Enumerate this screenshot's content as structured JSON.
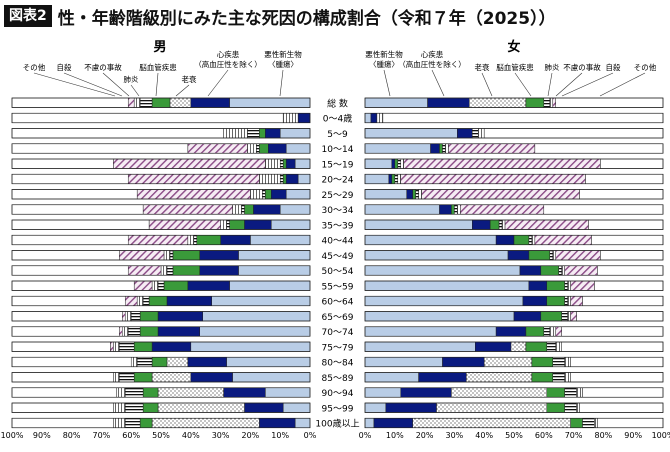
{
  "header": {
    "tag": "図表2",
    "title": "性・年齢階級別にみた主な死因の構成割合（令和７年（2025））"
  },
  "chart_data": {
    "type": "bar",
    "orientation": "horizontal-stacked",
    "categories": [
      "総 数",
      "0～4歳",
      "5～9",
      "10～14",
      "15～19",
      "20～24",
      "25～29",
      "30～34",
      "35～39",
      "40～44",
      "45～49",
      "50～54",
      "55～59",
      "60～64",
      "65～69",
      "70～74",
      "75～79",
      "80～84",
      "85～89",
      "90～94",
      "95～99",
      "100歳以上"
    ],
    "axis_ticks": [
      "100%",
      "90%",
      "80%",
      "70%",
      "60%",
      "50%",
      "40%",
      "30%",
      "20%",
      "10%",
      "0%"
    ],
    "xlim": [
      0,
      100
    ],
    "causes": [
      {
        "key": "cancer",
        "label": "悪性新生物",
        "label2": "〈腫瘍〉",
        "fill": "#b9cde6"
      },
      {
        "key": "heart",
        "label": "心疾患",
        "label2": "（高血圧性を除く）",
        "fill": "#0a1a80"
      },
      {
        "key": "senility",
        "label": "老衰",
        "label2": "",
        "fill": "dots"
      },
      {
        "key": "stroke",
        "label": "脳血管疾患",
        "label2": "",
        "fill": "#3a9a3a"
      },
      {
        "key": "pneumonia",
        "label": "肺炎",
        "label2": "",
        "fill": "hstripes"
      },
      {
        "key": "accident",
        "label": "不慮の事故",
        "label2": "",
        "fill": "vlines"
      },
      {
        "key": "suicide",
        "label": "自殺",
        "label2": "",
        "fill": "diag"
      },
      {
        "key": "other",
        "label": "その他",
        "label2": "",
        "fill": "#ffffff"
      }
    ],
    "panels": [
      {
        "sex": "男",
        "direction": "right-to-left",
        "series": [
          {
            "name": "悪性新生物",
            "values": [
              27,
              0,
              10,
              8,
              5,
              4,
              8,
              10,
              13,
              20,
              24,
              24,
              27,
              33,
              36,
              37,
              40,
              28,
              26,
              15,
              9,
              5
            ]
          },
          {
            "name": "心疾患",
            "values": [
              13,
              4,
              5,
              6,
              3,
              4,
              5,
              9,
              9,
              10,
              13,
              13,
              14,
              15,
              15,
              14,
              13,
              13,
              14,
              14,
              13,
              12
            ]
          },
          {
            "name": "老衰",
            "values": [
              7,
              0,
              0,
              0,
              0,
              0,
              0,
              0,
              0,
              0,
              0,
              0,
              0,
              0,
              0,
              0,
              0,
              7,
              13,
              22,
              29,
              36
            ]
          },
          {
            "name": "脳血管疾患",
            "values": [
              6,
              0,
              2,
              3,
              1,
              1,
              2,
              3,
              5,
              8,
              9,
              9,
              8,
              6,
              6,
              6,
              6,
              5,
              6,
              5,
              5,
              4
            ]
          },
          {
            "name": "肺炎",
            "values": [
              4,
              0,
              4,
              1,
              1,
              1,
              1,
              1,
              1,
              1,
              1,
              2,
              2,
              2,
              3,
              4,
              5,
              5,
              5,
              6,
              6,
              5
            ]
          },
          {
            "name": "不慮の事故",
            "values": [
              2,
              5,
              8,
              3,
              5,
              7,
              4,
              3,
              2,
              2,
              2,
              2,
              2,
              2,
              2,
              2,
              2,
              2,
              2,
              3,
              4,
              4
            ]
          },
          {
            "name": "自殺",
            "values": [
              2,
              0,
              0,
              20,
              51,
              44,
              38,
              30,
              24,
              20,
              15,
              11,
              6,
              4,
              1,
              1,
              1,
              0,
              0,
              0,
              0,
              0
            ]
          },
          {
            "name": "その他",
            "values": [
              39,
              91,
              71,
              59,
              34,
              39,
              42,
              44,
              46,
              39,
              36,
              39,
              41,
              38,
              37,
              36,
              33,
              40,
              34,
              35,
              34,
              34
            ]
          }
        ]
      },
      {
        "sex": "女",
        "direction": "left-to-right",
        "series": [
          {
            "name": "悪性新生物",
            "values": [
              21,
              2,
              31,
              22,
              9,
              8,
              14,
              25,
              36,
              44,
              48,
              52,
              55,
              53,
              50,
              44,
              37,
              26,
              18,
              12,
              7,
              3
            ]
          },
          {
            "name": "心疾患",
            "values": [
              14,
              2,
              5,
              3,
              1,
              1,
              2,
              4,
              6,
              6,
              7,
              7,
              6,
              8,
              9,
              10,
              12,
              14,
              16,
              17,
              17,
              13
            ]
          },
          {
            "name": "老衰",
            "values": [
              19,
              0,
              0,
              0,
              0,
              0,
              0,
              0,
              0,
              0,
              0,
              0,
              0,
              0,
              0,
              0,
              5,
              16,
              22,
              32,
              37,
              53
            ]
          },
          {
            "name": "脳血管疾患",
            "values": [
              6,
              0,
              0,
              1,
              1,
              1,
              1,
              1,
              3,
              5,
              7,
              6,
              6,
              6,
              7,
              6,
              7,
              7,
              7,
              6,
              6,
              4
            ]
          },
          {
            "name": "肺炎",
            "values": [
              2,
              0,
              2,
              1,
              1,
              1,
              1,
              1,
              1,
              1,
              1,
              1,
              1,
              1,
              2,
              2,
              3,
              4,
              4,
              4,
              4,
              4
            ]
          },
          {
            "name": "不慮の事故",
            "values": [
              1,
              2,
              2,
              1,
              1,
              1,
              1,
              1,
              1,
              1,
              1,
              1,
              1,
              1,
              1,
              2,
              2,
              2,
              2,
              2,
              1,
              1
            ]
          },
          {
            "name": "自殺",
            "values": [
              1,
              0,
              0,
              29,
              66,
              62,
              53,
              28,
              28,
              19,
              15,
              11,
              8,
              4,
              2,
              2,
              0,
              0,
              0,
              0,
              0,
              0
            ]
          },
          {
            "name": "その他",
            "values": [
              36,
              94,
              60,
              43,
              21,
              26,
              28,
              40,
              25,
              24,
              21,
              22,
              23,
              27,
              29,
              34,
              34,
              31,
              31,
              27,
              28,
              22
            ]
          }
        ]
      }
    ]
  }
}
